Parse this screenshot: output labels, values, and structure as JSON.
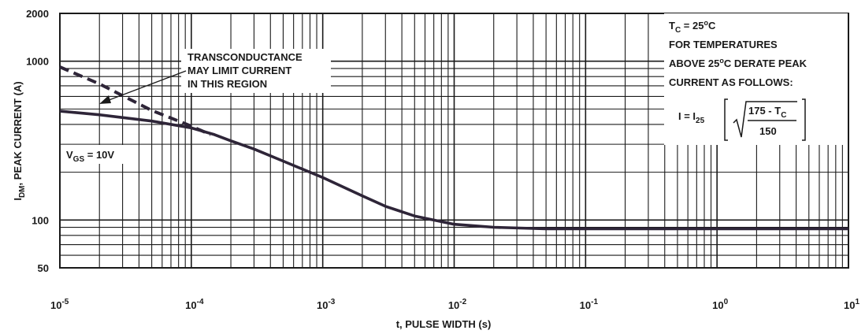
{
  "chart_data": {
    "type": "line",
    "title": "",
    "xlabel": "t, PULSE WIDTH (s)",
    "ylabel": {
      "main": "I",
      "sub": "DM",
      "rest": ", PEAK CURRENT (A)"
    },
    "x_scale": "log",
    "y_scale": "log",
    "xlim": [
      1e-05,
      10
    ],
    "ylim": [
      50,
      2000
    ],
    "grid": true,
    "x_ticks": [
      {
        "base": "10",
        "exp": "-5",
        "value": 1e-05
      },
      {
        "base": "10",
        "exp": "-4",
        "value": 0.0001
      },
      {
        "base": "10",
        "exp": "-3",
        "value": 0.001
      },
      {
        "base": "10",
        "exp": "-2",
        "value": 0.01
      },
      {
        "base": "10",
        "exp": "-1",
        "value": 0.1
      },
      {
        "base": "10",
        "exp": "0",
        "value": 1
      },
      {
        "base": "10",
        "exp": "1",
        "value": 10
      }
    ],
    "y_ticks": [
      {
        "label": "2000",
        "value": 2000
      },
      {
        "label": "1000",
        "value": 1000
      },
      {
        "label": "100",
        "value": 100
      },
      {
        "label": "50",
        "value": 50
      }
    ],
    "series": [
      {
        "style": "solid",
        "x": [
          1e-05,
          2e-05,
          5e-05,
          0.0001,
          0.00015,
          0.0002,
          0.0003,
          0.0005,
          0.001,
          0.002,
          0.003,
          0.005,
          0.01,
          0.02,
          0.05,
          0.1,
          1,
          10
        ],
        "y": [
          485,
          460,
          420,
          380,
          345,
          315,
          280,
          235,
          185,
          142,
          122,
          106,
          94,
          90,
          88,
          88,
          88,
          88
        ]
      },
      {
        "style": "dashed",
        "x": [
          1e-05,
          2e-05,
          5e-05,
          0.0001,
          0.00014
        ],
        "y": [
          920,
          720,
          490,
          390,
          345
        ]
      }
    ],
    "annotations": {
      "transconductance": [
        "TRANSCONDUCTANCE",
        "MAY LIMIT CURRENT",
        "IN THIS REGION"
      ],
      "vgs": {
        "main": "V",
        "sub": "GS",
        "rest": " = 10V"
      },
      "derate": {
        "tc": {
          "main": "T",
          "sub": "C",
          "rest": " = 25",
          "sup": "o",
          "unit": "C"
        },
        "line2": "FOR TEMPERATURES",
        "line3": {
          "pre": "ABOVE 25",
          "sup": "o",
          "post": "C DERATE PEAK"
        },
        "line4": "CURRENT AS FOLLOWS:",
        "formula": {
          "lhs_main": "I = I",
          "lhs_sub": "25",
          "numerator_main": "175 - T",
          "numerator_sub": "C",
          "denominator": "150"
        }
      }
    }
  }
}
